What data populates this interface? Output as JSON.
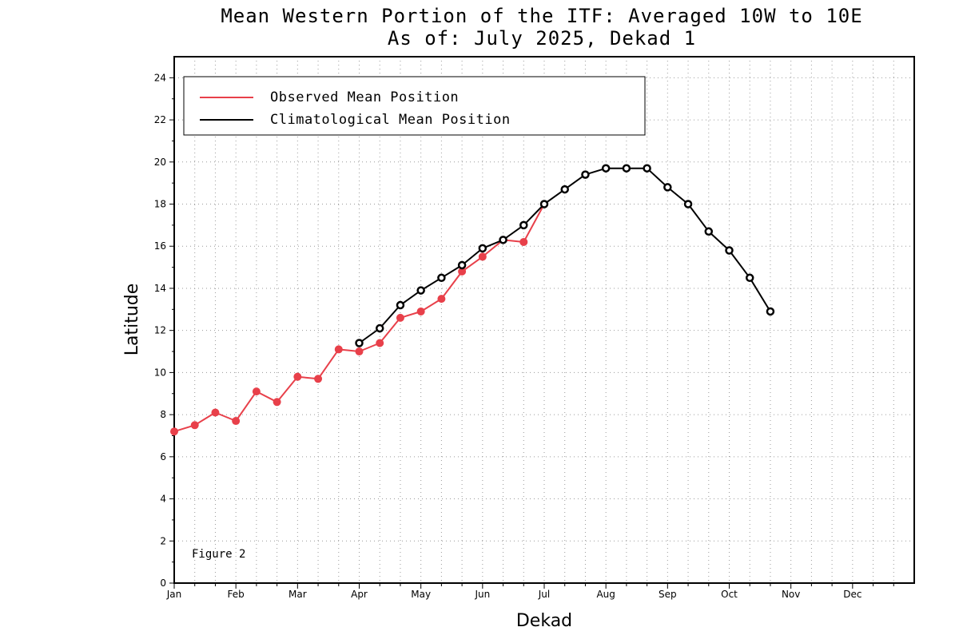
{
  "chart_data": {
    "type": "line",
    "title": "Mean Western Portion of the ITF: Averaged 10W to 10E",
    "subtitle": "As of: July 2025, Dekad 1",
    "xlabel": "Dekad",
    "ylabel": "Latitude",
    "categories": [
      "Jan",
      "Feb",
      "Mar",
      "Apr",
      "May",
      "Jun",
      "Jul",
      "Aug",
      "Sep",
      "Oct",
      "Nov",
      "Dec"
    ],
    "xlim": [
      1,
      36
    ],
    "ylim": [
      0,
      25
    ],
    "yticks": [
      "0",
      "2",
      "4",
      "6",
      "8",
      "10",
      "12",
      "14",
      "16",
      "18",
      "20",
      "22",
      "24"
    ],
    "grid": true,
    "legend_position": "top-left",
    "annotation": "Figure 2",
    "series": [
      {
        "name": "Observed Mean Position",
        "color": "#e8404a",
        "marker": "filled-circle",
        "x": [
          1,
          2,
          3,
          4,
          5,
          6,
          7,
          8,
          9,
          10,
          11,
          12,
          13,
          14,
          15,
          16,
          17,
          18,
          19
        ],
        "values": [
          7.2,
          7.5,
          8.1,
          7.7,
          9.1,
          8.6,
          9.8,
          9.7,
          11.1,
          11.0,
          11.4,
          12.6,
          12.9,
          13.5,
          14.8,
          15.5,
          16.3,
          16.2,
          18.0
        ]
      },
      {
        "name": "Climatological Mean Position",
        "color": "#000000",
        "marker": "open-circle",
        "x": [
          10,
          11,
          12,
          13,
          14,
          15,
          16,
          17,
          18,
          19,
          20,
          21,
          22,
          23,
          24,
          25,
          26,
          27,
          28,
          29,
          30
        ],
        "values": [
          11.4,
          12.1,
          13.2,
          13.9,
          14.5,
          15.1,
          15.9,
          16.3,
          17.0,
          18.0,
          18.7,
          19.4,
          19.7,
          19.7,
          19.7,
          18.8,
          18.0,
          16.7,
          15.8,
          14.5,
          12.9
        ]
      }
    ]
  }
}
